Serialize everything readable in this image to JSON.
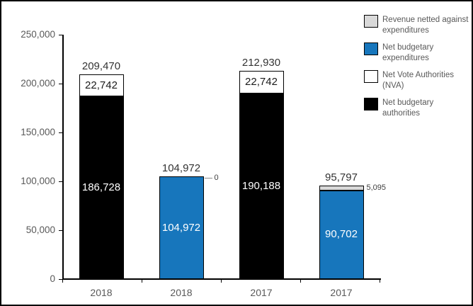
{
  "colors": {
    "background": "#ffffff",
    "border": "#000000",
    "axis": "#000000",
    "axis_text": "#595959",
    "data_label": "#333333",
    "blue": "#1776bc",
    "light_gray": "#d9d9d9",
    "white": "#ffffff",
    "black": "#000000"
  },
  "chart_data": {
    "type": "bar",
    "stacked": true,
    "title": "",
    "xlabel": "",
    "ylabel": "",
    "grid": false,
    "legend_position": "top-right",
    "categories": [
      "2018",
      "2018",
      "2017",
      "2017"
    ],
    "ylim": [
      0,
      250000
    ],
    "ytick_interval": 50000,
    "yticks": [
      {
        "value": 0,
        "label": "0"
      },
      {
        "value": 50000,
        "label": "50,000"
      },
      {
        "value": 100000,
        "label": "100,000"
      },
      {
        "value": 150000,
        "label": "150,000"
      },
      {
        "value": 200000,
        "label": "200,000"
      },
      {
        "value": 250000,
        "label": "250,000"
      }
    ],
    "legend": [
      {
        "label": "Revenue netted against expenditures",
        "color": "#d9d9d9"
      },
      {
        "label": "Net budgetary expenditures",
        "color": "#1776bc"
      },
      {
        "label": "Net Vote Authorities (NVA)",
        "color": "#ffffff"
      },
      {
        "label": "Net budgetary authorities",
        "color": "#000000"
      }
    ],
    "bars": [
      {
        "category": "2018",
        "total": 209470,
        "total_label": "209,470",
        "segments": [
          {
            "series": "Net budgetary authorities",
            "value": 186728,
            "label": "186,728",
            "color": "#000000",
            "text_color": "#ffffff"
          },
          {
            "series": "Net Vote Authorities (NVA)",
            "value": 22742,
            "label": "22,742",
            "color": "#ffffff",
            "text_color": "#1a1a1a"
          }
        ]
      },
      {
        "category": "2018",
        "total": 104972,
        "total_label": "104,972",
        "segments": [
          {
            "series": "Net budgetary expenditures",
            "value": 104972,
            "label": "104,972",
            "color": "#1776bc",
            "text_color": "#ffffff"
          }
        ]
      },
      {
        "category": "2017",
        "total": 212930,
        "total_label": "212,930",
        "segments": [
          {
            "series": "Net budgetary authorities",
            "value": 190188,
            "label": "190,188",
            "color": "#000000",
            "text_color": "#ffffff"
          },
          {
            "series": "Net Vote Authorities (NVA)",
            "value": 22742,
            "label": "22,742",
            "color": "#ffffff",
            "text_color": "#1a1a1a"
          }
        ]
      },
      {
        "category": "2017",
        "total": 95797,
        "total_label": "95,797",
        "segments": [
          {
            "series": "Net budgetary expenditures",
            "value": 90702,
            "label": "90,702",
            "color": "#1776bc",
            "text_color": "#ffffff"
          },
          {
            "series": "Revenue netted against expenditures",
            "value": 5095,
            "label": "",
            "color": "#d9d9d9",
            "text_color": "#1a1a1a"
          }
        ]
      }
    ],
    "annotations": [
      {
        "bar_index": 1,
        "text": "0",
        "leader": true
      },
      {
        "bar_index": 3,
        "text": "5,095",
        "leader": false
      }
    ]
  }
}
